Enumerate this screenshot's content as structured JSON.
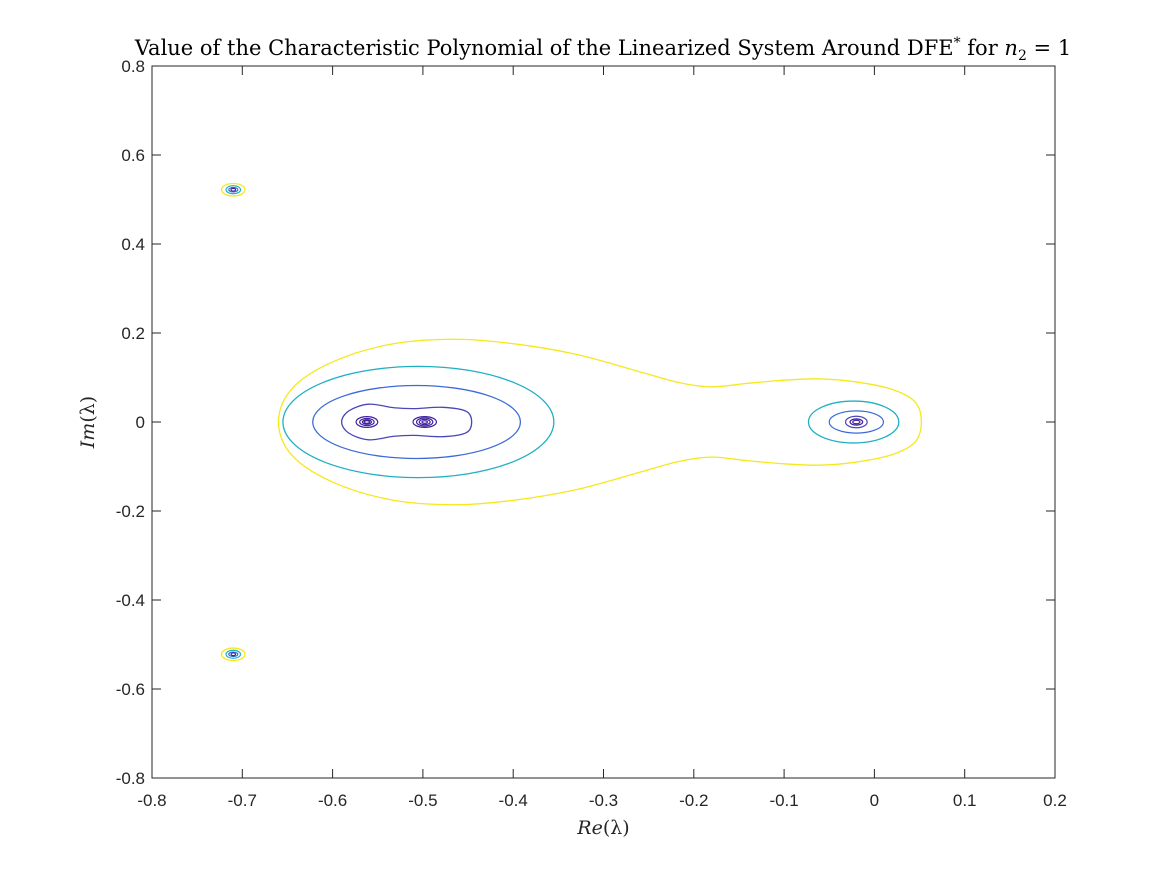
{
  "chart_data": {
    "type": "contour",
    "title": {
      "main": "Value of the Characteristic Polynomial of the Linearized System Around DFE",
      "superscript": "*",
      "suffix_text": " for ",
      "var": "n",
      "var_sub": "2",
      "equals": " = 1"
    },
    "xlabel": {
      "italic": "Re",
      "rest": "(λ)"
    },
    "ylabel": {
      "italic": "Im",
      "rest": "(λ)"
    },
    "xlim": [
      -0.8,
      0.2
    ],
    "ylim": [
      -0.8,
      0.8
    ],
    "x_ticks": [
      -0.8,
      -0.7,
      -0.6,
      -0.5,
      -0.4,
      -0.3,
      -0.2,
      -0.1,
      0,
      0.1,
      0.2
    ],
    "x_tick_labels": [
      "-0.8",
      "-0.7",
      "-0.6",
      "-0.5",
      "-0.4",
      "-0.3",
      "-0.2",
      "-0.1",
      "0",
      "0.1",
      "0.2"
    ],
    "y_ticks": [
      -0.8,
      -0.6,
      -0.4,
      -0.2,
      0,
      0.2,
      0.4,
      0.6,
      0.8
    ],
    "y_tick_labels": [
      "-0.8",
      "-0.6",
      "-0.4",
      "-0.2",
      "0",
      "0.2",
      "0.4",
      "0.6",
      "0.8"
    ],
    "grid": false,
    "box": true,
    "level_colors": [
      "#3d1f9e",
      "#4747b8",
      "#3c6bd8",
      "#1fb0c2",
      "#f5e81c"
    ],
    "roots": [
      {
        "re": -0.71,
        "im": 0.522
      },
      {
        "re": -0.71,
        "im": -0.522
      },
      {
        "re": -0.562,
        "im": 0.0
      },
      {
        "re": -0.498,
        "im": 0.0
      },
      {
        "re": -0.02,
        "im": 0.0
      }
    ],
    "contours": [
      {
        "level": 5,
        "color": "#f5e81c",
        "points": [
          [
            -0.66,
            0
          ],
          [
            -0.645,
            0.075
          ],
          [
            -0.6,
            0.135
          ],
          [
            -0.535,
            0.175
          ],
          [
            -0.465,
            0.186
          ],
          [
            -0.4,
            0.176
          ],
          [
            -0.33,
            0.152
          ],
          [
            -0.26,
            0.113
          ],
          [
            -0.215,
            0.088
          ],
          [
            -0.18,
            0.079
          ],
          [
            -0.14,
            0.087
          ],
          [
            -0.1,
            0.094
          ],
          [
            -0.06,
            0.097
          ],
          [
            -0.02,
            0.09
          ],
          [
            0.02,
            0.073
          ],
          [
            0.045,
            0.045
          ],
          [
            0.052,
            0
          ],
          [
            0.045,
            -0.045
          ],
          [
            0.02,
            -0.073
          ],
          [
            -0.02,
            -0.09
          ],
          [
            -0.06,
            -0.097
          ],
          [
            -0.1,
            -0.094
          ],
          [
            -0.14,
            -0.087
          ],
          [
            -0.18,
            -0.079
          ],
          [
            -0.215,
            -0.088
          ],
          [
            -0.26,
            -0.113
          ],
          [
            -0.33,
            -0.152
          ],
          [
            -0.4,
            -0.176
          ],
          [
            -0.465,
            -0.186
          ],
          [
            -0.535,
            -0.175
          ],
          [
            -0.6,
            -0.135
          ],
          [
            -0.645,
            -0.075
          ]
        ]
      },
      {
        "level": 4,
        "color": "#1fb0c2",
        "ellipse": {
          "cx": -0.505,
          "cy": 0,
          "rx": 0.15,
          "ry": 0.125
        }
      },
      {
        "level": 3,
        "color": "#3c6bd8",
        "ellipse": {
          "cx": -0.507,
          "cy": 0,
          "rx": 0.115,
          "ry": 0.082
        }
      },
      {
        "level": 2,
        "color": "#4747b8",
        "points": [
          [
            -0.59,
            0
          ],
          [
            -0.582,
            0.025
          ],
          [
            -0.56,
            0.04
          ],
          [
            -0.532,
            0.032
          ],
          [
            -0.51,
            0.03
          ],
          [
            -0.478,
            0.033
          ],
          [
            -0.452,
            0.024
          ],
          [
            -0.446,
            0
          ],
          [
            -0.452,
            -0.024
          ],
          [
            -0.478,
            -0.033
          ],
          [
            -0.51,
            -0.03
          ],
          [
            -0.532,
            -0.032
          ],
          [
            -0.56,
            -0.04
          ],
          [
            -0.582,
            -0.025
          ]
        ]
      },
      {
        "level": 4,
        "color": "#1fb0c2",
        "ellipse": {
          "cx": -0.023,
          "cy": 0,
          "rx": 0.05,
          "ry": 0.047
        }
      },
      {
        "level": 5,
        "color": "#f5e81c",
        "ellipse": {
          "cx": -0.71,
          "cy": 0.522,
          "rx": 0.013,
          "ry": 0.014
        }
      },
      {
        "level": 5,
        "color": "#f5e81c",
        "ellipse": {
          "cx": -0.71,
          "cy": -0.522,
          "rx": 0.013,
          "ry": 0.014
        }
      }
    ],
    "root_rings": [
      {
        "re": -0.562,
        "im": 0,
        "rings": [
          [
            0.012,
            0.012,
            "#3d1f9e"
          ],
          [
            0.008,
            0.008,
            "#3d1f9e"
          ],
          [
            0.005,
            0.005,
            "#3d1f9e"
          ],
          [
            0.003,
            0.003,
            "#3d1f9e"
          ]
        ]
      },
      {
        "re": -0.498,
        "im": 0,
        "rings": [
          [
            0.013,
            0.012,
            "#3d1f9e"
          ],
          [
            0.009,
            0.009,
            "#3d1f9e"
          ],
          [
            0.006,
            0.006,
            "#3d1f9e"
          ],
          [
            0.003,
            0.003,
            "#3d1f9e"
          ]
        ]
      },
      {
        "re": -0.02,
        "im": 0,
        "rings": [
          [
            0.03,
            0.025,
            "#3c6bd8"
          ],
          [
            0.012,
            0.013,
            "#4747b8"
          ],
          [
            0.007,
            0.007,
            "#3d1f9e"
          ],
          [
            0.004,
            0.004,
            "#3d1f9e"
          ]
        ]
      },
      {
        "re": -0.71,
        "im": 0.522,
        "rings": [
          [
            0.008,
            0.009,
            "#1fb0c2"
          ],
          [
            0.005,
            0.005,
            "#3c6bd8"
          ],
          [
            0.0025,
            0.003,
            "#3d1f9e"
          ]
        ]
      },
      {
        "re": -0.71,
        "im": -0.522,
        "rings": [
          [
            0.008,
            0.009,
            "#1fb0c2"
          ],
          [
            0.005,
            0.005,
            "#3c6bd8"
          ],
          [
            0.0025,
            0.003,
            "#3d1f9e"
          ]
        ]
      }
    ]
  }
}
